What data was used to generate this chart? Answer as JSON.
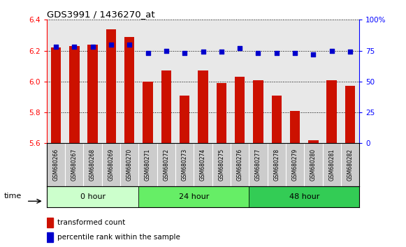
{
  "title": "GDS3991 / 1436270_at",
  "samples": [
    "GSM680266",
    "GSM680267",
    "GSM680268",
    "GSM680269",
    "GSM680270",
    "GSM680271",
    "GSM680272",
    "GSM680273",
    "GSM680274",
    "GSM680275",
    "GSM680276",
    "GSM680277",
    "GSM680278",
    "GSM680279",
    "GSM680280",
    "GSM680281",
    "GSM680282"
  ],
  "red_values": [
    6.22,
    6.23,
    6.24,
    6.34,
    6.29,
    6.0,
    6.07,
    5.91,
    6.07,
    5.99,
    6.03,
    6.01,
    5.91,
    5.81,
    5.62,
    6.01,
    5.97
  ],
  "blue_values": [
    78,
    78,
    78,
    80,
    80,
    73,
    75,
    73,
    74,
    74,
    77,
    73,
    73,
    73,
    72,
    75,
    74
  ],
  "ylim_left": [
    5.6,
    6.4
  ],
  "ylim_right": [
    0,
    100
  ],
  "yticks_left": [
    5.6,
    5.8,
    6.0,
    6.2,
    6.4
  ],
  "yticks_right": [
    0,
    25,
    50,
    75,
    100
  ],
  "groups": [
    {
      "label": "0 hour",
      "start": 0,
      "end": 5,
      "color": "#ccffcc"
    },
    {
      "label": "24 hour",
      "start": 5,
      "end": 11,
      "color": "#66ee66"
    },
    {
      "label": "48 hour",
      "start": 11,
      "end": 17,
      "color": "#33cc55"
    }
  ],
  "bar_color": "#cc1100",
  "dot_color": "#0000cc",
  "label_bg_color": "#cccccc",
  "plot_bg": "#ffffff",
  "bar_width": 0.55,
  "dot_size": 22,
  "legend_red": "transformed count",
  "legend_blue": "percentile rank within the sample"
}
